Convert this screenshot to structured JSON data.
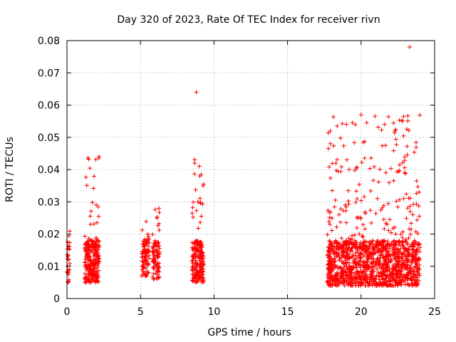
{
  "chart_data": {
    "type": "scatter",
    "title": "Day 320 of 2023, Rate Of TEC Index for receiver rivn",
    "xlabel": "GPS time / hours",
    "ylabel": "ROTI / TECUs",
    "xlim": [
      0,
      25
    ],
    "ylim": [
      0,
      0.08
    ],
    "x_ticks": [
      "0",
      "5",
      "10",
      "15",
      "20",
      "25"
    ],
    "y_ticks": [
      "0",
      "0.01",
      "0.02",
      "0.03",
      "0.04",
      "0.05",
      "0.06",
      "0.07",
      "0.08"
    ],
    "grid": true,
    "marker": "+",
    "color": "#ff0000",
    "clusters": [
      {
        "x_range": [
          0.0,
          0.2
        ],
        "y_range": [
          0.005,
          0.024
        ],
        "count": 30
      },
      {
        "x_range": [
          1.2,
          2.2
        ],
        "y_range": [
          0.005,
          0.046
        ],
        "count": 260
      },
      {
        "x_range": [
          5.1,
          5.6
        ],
        "y_range": [
          0.007,
          0.025
        ],
        "count": 90
      },
      {
        "x_range": [
          5.8,
          6.3
        ],
        "y_range": [
          0.006,
          0.028
        ],
        "count": 90
      },
      {
        "x_range": [
          8.5,
          9.3
        ],
        "y_range": [
          0.005,
          0.045
        ],
        "count": 200
      },
      {
        "x_range": [
          17.7,
          24.0
        ],
        "y_range": [
          0.004,
          0.057
        ],
        "count": 1400
      }
    ],
    "outliers": [
      {
        "x": 8.8,
        "y": 0.064
      },
      {
        "x": 23.3,
        "y": 0.078
      },
      {
        "x": 20.0,
        "y": 0.057
      },
      {
        "x": 17.9,
        "y": 0.052
      },
      {
        "x": 22.8,
        "y": 0.055
      },
      {
        "x": 21.6,
        "y": 0.054
      }
    ]
  }
}
